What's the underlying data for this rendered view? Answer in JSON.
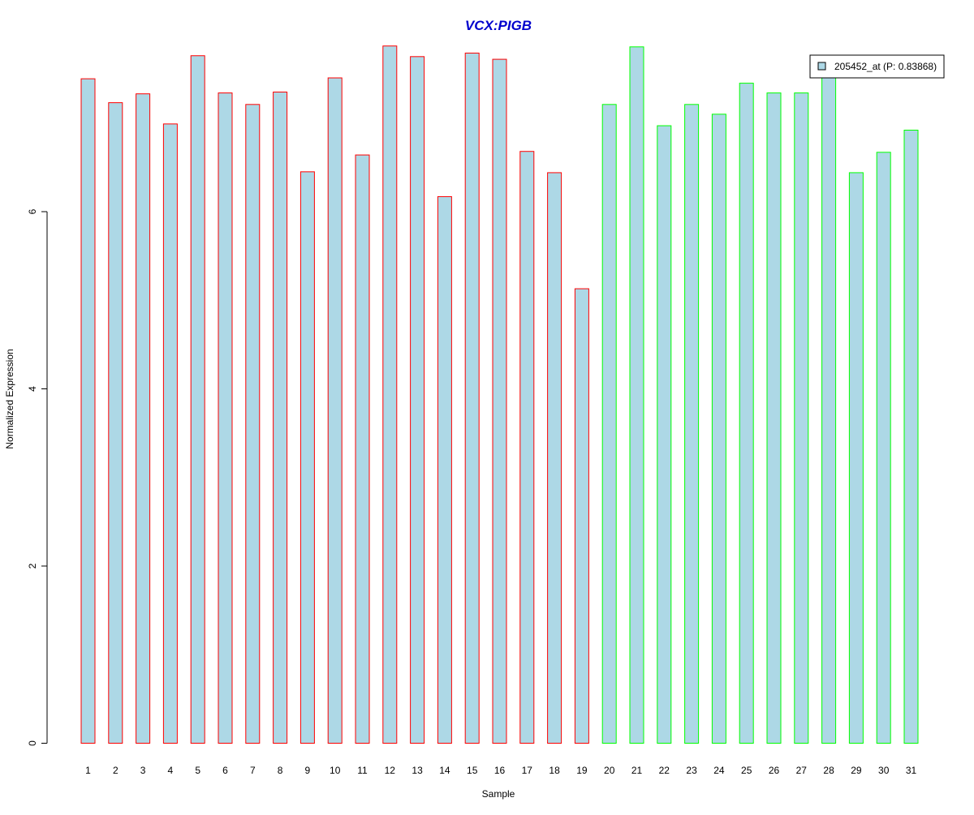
{
  "chart_data": {
    "type": "bar",
    "title": "VCX:PIGB",
    "xlabel": "Sample",
    "ylabel": "Normalized Expression",
    "categories": [
      "1",
      "2",
      "3",
      "4",
      "5",
      "6",
      "7",
      "8",
      "9",
      "10",
      "11",
      "12",
      "13",
      "14",
      "15",
      "16",
      "17",
      "18",
      "19",
      "20",
      "21",
      "22",
      "23",
      "24",
      "25",
      "26",
      "27",
      "28",
      "29",
      "30",
      "31"
    ],
    "series": [
      {
        "name": "205452_at (P: 0.83868)",
        "values": [
          7.5,
          7.23,
          7.33,
          6.99,
          7.76,
          7.34,
          7.21,
          7.35,
          6.45,
          7.51,
          6.64,
          7.87,
          7.75,
          6.17,
          7.79,
          7.72,
          6.68,
          6.44,
          5.13,
          7.21,
          7.86,
          6.97,
          7.21,
          7.1,
          7.45,
          7.34,
          7.34,
          7.6,
          6.44,
          6.67,
          6.92
        ]
      }
    ],
    "groups": [
      {
        "samples": [
          1,
          19
        ],
        "border_color": "#ff0000"
      },
      {
        "samples": [
          20,
          31
        ],
        "border_color": "#00ff00"
      }
    ],
    "ylim": [
      0,
      8
    ],
    "yticks": [
      0,
      2,
      4,
      6
    ],
    "grid": false,
    "legend": "top-right",
    "colors": {
      "bar_fill": "#add8e6",
      "title": "#0000cd",
      "axis": "#000000"
    }
  }
}
